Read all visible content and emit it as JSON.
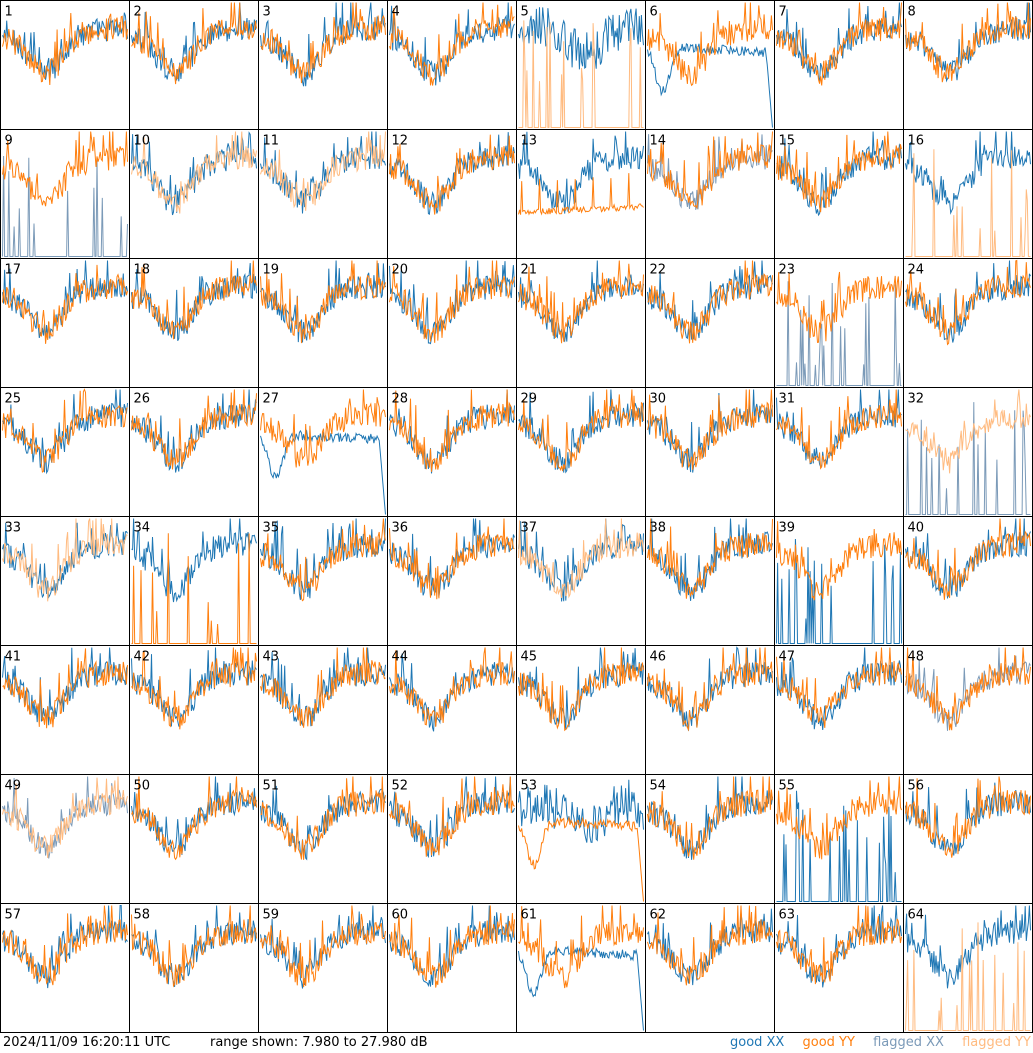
{
  "footer": {
    "timestamp": "2024/11/09 16:20:11 UTC",
    "range_text": "range shown: 7.980 to 27.980 dB",
    "legend": {
      "good_xx": "good XX",
      "good_yy": "good YY",
      "flagged_xx": "flagged XX",
      "flagged_yy": "flagged YY"
    }
  },
  "colors": {
    "good_xx": "#1f77b4",
    "good_yy": "#ff7f0e",
    "flagged_xx": "#7b9ab8",
    "flagged_yy": "#ffbb80",
    "panel_border": "#000000"
  },
  "chart_data": {
    "type": "line",
    "grid_rows": 8,
    "grid_cols": 8,
    "ylim": [
      7.98,
      27.98
    ],
    "y_unit": "dB",
    "panels": [
      {
        "label": "1",
        "xx": "good",
        "yy": "good",
        "xx_style": "normal",
        "yy_style": "normal"
      },
      {
        "label": "2",
        "xx": "good",
        "yy": "good",
        "xx_style": "normal",
        "yy_style": "normal"
      },
      {
        "label": "3",
        "xx": "good",
        "yy": "good",
        "xx_style": "normal",
        "yy_style": "normal"
      },
      {
        "label": "4",
        "xx": "good",
        "yy": "good",
        "xx_style": "normal",
        "yy_style": "normal"
      },
      {
        "label": "5",
        "xx": "good",
        "yy": "flagged",
        "xx_style": "noisy_high",
        "yy_style": "spikes"
      },
      {
        "label": "6",
        "xx": "good",
        "yy": "good",
        "xx_style": "droop",
        "yy_style": "normal"
      },
      {
        "label": "7",
        "xx": "good",
        "yy": "good",
        "xx_style": "normal",
        "yy_style": "normal"
      },
      {
        "label": "8",
        "xx": "good",
        "yy": "good",
        "xx_style": "normal",
        "yy_style": "normal"
      },
      {
        "label": "9",
        "xx": "flagged",
        "yy": "good",
        "xx_style": "spikes",
        "yy_style": "normal"
      },
      {
        "label": "10",
        "xx": "good",
        "yy": "flagged",
        "xx_style": "normal",
        "yy_style": "normal"
      },
      {
        "label": "11",
        "xx": "good",
        "yy": "flagged",
        "xx_style": "normal",
        "yy_style": "normal"
      },
      {
        "label": "12",
        "xx": "good",
        "yy": "good",
        "xx_style": "normal",
        "yy_style": "normal"
      },
      {
        "label": "13",
        "xx": "good",
        "yy": "good",
        "xx_style": "normal",
        "yy_style": "flat_low"
      },
      {
        "label": "14",
        "xx": "flagged",
        "yy": "good",
        "xx_style": "normal",
        "yy_style": "normal"
      },
      {
        "label": "15",
        "xx": "good",
        "yy": "good",
        "xx_style": "normal",
        "yy_style": "normal"
      },
      {
        "label": "16",
        "xx": "good",
        "yy": "flagged",
        "xx_style": "normal",
        "yy_style": "spikes"
      },
      {
        "label": "17",
        "xx": "good",
        "yy": "good",
        "xx_style": "normal",
        "yy_style": "normal"
      },
      {
        "label": "18",
        "xx": "good",
        "yy": "good",
        "xx_style": "normal",
        "yy_style": "normal"
      },
      {
        "label": "19",
        "xx": "good",
        "yy": "good",
        "xx_style": "normal",
        "yy_style": "normal"
      },
      {
        "label": "20",
        "xx": "good",
        "yy": "good",
        "xx_style": "normal",
        "yy_style": "normal"
      },
      {
        "label": "21",
        "xx": "good",
        "yy": "good",
        "xx_style": "normal",
        "yy_style": "normal"
      },
      {
        "label": "22",
        "xx": "good",
        "yy": "good",
        "xx_style": "normal",
        "yy_style": "normal"
      },
      {
        "label": "23",
        "xx": "flagged",
        "yy": "good",
        "xx_style": "spikes",
        "yy_style": "normal"
      },
      {
        "label": "24",
        "xx": "good",
        "yy": "good",
        "xx_style": "normal",
        "yy_style": "normal"
      },
      {
        "label": "25",
        "xx": "good",
        "yy": "good",
        "xx_style": "normal",
        "yy_style": "normal"
      },
      {
        "label": "26",
        "xx": "good",
        "yy": "good",
        "xx_style": "normal",
        "yy_style": "normal"
      },
      {
        "label": "27",
        "xx": "good",
        "yy": "good",
        "xx_style": "droop",
        "yy_style": "normal"
      },
      {
        "label": "28",
        "xx": "good",
        "yy": "good",
        "xx_style": "normal",
        "yy_style": "normal"
      },
      {
        "label": "29",
        "xx": "good",
        "yy": "good",
        "xx_style": "normal",
        "yy_style": "normal"
      },
      {
        "label": "30",
        "xx": "good",
        "yy": "good",
        "xx_style": "normal",
        "yy_style": "normal"
      },
      {
        "label": "31",
        "xx": "good",
        "yy": "good",
        "xx_style": "normal",
        "yy_style": "normal"
      },
      {
        "label": "32",
        "xx": "flagged",
        "yy": "flagged",
        "xx_style": "spikes",
        "yy_style": "normal"
      },
      {
        "label": "33",
        "xx": "good",
        "yy": "flagged",
        "xx_style": "normal",
        "yy_style": "normal"
      },
      {
        "label": "34",
        "xx": "good",
        "yy": "good",
        "xx_style": "normal",
        "yy_style": "spikes"
      },
      {
        "label": "35",
        "xx": "good",
        "yy": "good",
        "xx_style": "normal",
        "yy_style": "normal"
      },
      {
        "label": "36",
        "xx": "good",
        "yy": "good",
        "xx_style": "normal",
        "yy_style": "normal"
      },
      {
        "label": "37",
        "xx": "good",
        "yy": "flagged",
        "xx_style": "normal",
        "yy_style": "normal"
      },
      {
        "label": "38",
        "xx": "good",
        "yy": "good",
        "xx_style": "normal",
        "yy_style": "normal"
      },
      {
        "label": "39",
        "xx": "good",
        "yy": "good",
        "xx_style": "spikes",
        "yy_style": "normal"
      },
      {
        "label": "40",
        "xx": "good",
        "yy": "good",
        "xx_style": "normal",
        "yy_style": "normal"
      },
      {
        "label": "41",
        "xx": "good",
        "yy": "good",
        "xx_style": "normal",
        "yy_style": "normal"
      },
      {
        "label": "42",
        "xx": "good",
        "yy": "good",
        "xx_style": "normal",
        "yy_style": "normal"
      },
      {
        "label": "43",
        "xx": "good",
        "yy": "good",
        "xx_style": "normal",
        "yy_style": "normal"
      },
      {
        "label": "44",
        "xx": "good",
        "yy": "good",
        "xx_style": "normal",
        "yy_style": "normal"
      },
      {
        "label": "45",
        "xx": "good",
        "yy": "good",
        "xx_style": "normal",
        "yy_style": "normal"
      },
      {
        "label": "46",
        "xx": "good",
        "yy": "good",
        "xx_style": "normal",
        "yy_style": "normal"
      },
      {
        "label": "47",
        "xx": "good",
        "yy": "good",
        "xx_style": "normal",
        "yy_style": "normal"
      },
      {
        "label": "48",
        "xx": "flagged",
        "yy": "good",
        "xx_style": "normal",
        "yy_style": "normal"
      },
      {
        "label": "49",
        "xx": "flagged",
        "yy": "flagged",
        "xx_style": "normal",
        "yy_style": "normal"
      },
      {
        "label": "50",
        "xx": "good",
        "yy": "good",
        "xx_style": "normal",
        "yy_style": "normal"
      },
      {
        "label": "51",
        "xx": "good",
        "yy": "good",
        "xx_style": "normal",
        "yy_style": "normal"
      },
      {
        "label": "52",
        "xx": "good",
        "yy": "good",
        "xx_style": "normal",
        "yy_style": "normal"
      },
      {
        "label": "53",
        "xx": "good",
        "yy": "good",
        "xx_style": "noisy_high",
        "yy_style": "droop"
      },
      {
        "label": "54",
        "xx": "good",
        "yy": "good",
        "xx_style": "normal",
        "yy_style": "normal"
      },
      {
        "label": "55",
        "xx": "good",
        "yy": "good",
        "xx_style": "spikes",
        "yy_style": "normal"
      },
      {
        "label": "56",
        "xx": "good",
        "yy": "good",
        "xx_style": "normal",
        "yy_style": "normal"
      },
      {
        "label": "57",
        "xx": "good",
        "yy": "good",
        "xx_style": "normal",
        "yy_style": "normal"
      },
      {
        "label": "58",
        "xx": "good",
        "yy": "good",
        "xx_style": "normal",
        "yy_style": "normal"
      },
      {
        "label": "59",
        "xx": "good",
        "yy": "good",
        "xx_style": "normal",
        "yy_style": "normal"
      },
      {
        "label": "60",
        "xx": "good",
        "yy": "good",
        "xx_style": "normal",
        "yy_style": "normal"
      },
      {
        "label": "61",
        "xx": "good",
        "yy": "good",
        "xx_style": "droop",
        "yy_style": "normal"
      },
      {
        "label": "62",
        "xx": "good",
        "yy": "good",
        "xx_style": "normal",
        "yy_style": "normal"
      },
      {
        "label": "63",
        "xx": "good",
        "yy": "good",
        "xx_style": "normal",
        "yy_style": "normal"
      },
      {
        "label": "64",
        "xx": "good",
        "yy": "flagged",
        "xx_style": "normal",
        "yy_style": "spikes"
      }
    ]
  }
}
